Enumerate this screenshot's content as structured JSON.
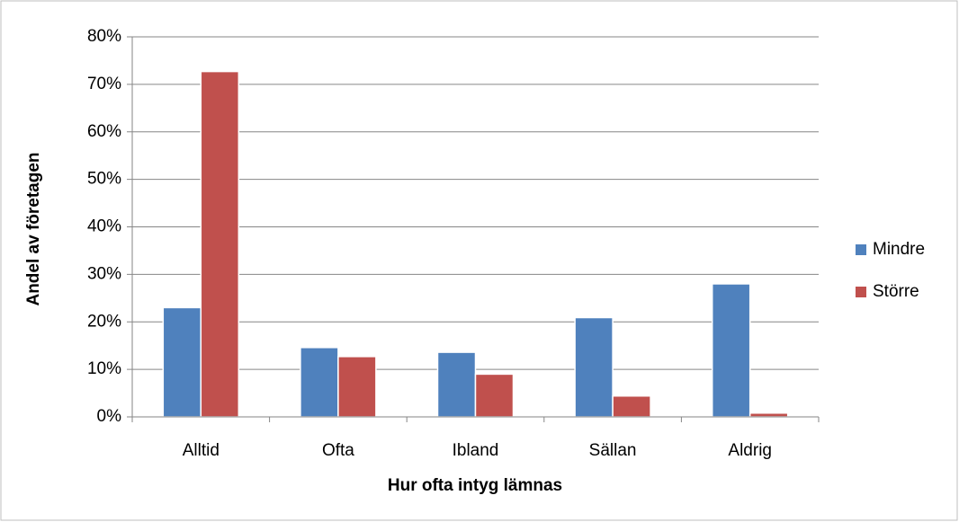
{
  "chart_data": {
    "type": "bar",
    "categories": [
      "Alltid",
      "Ofta",
      "Ibland",
      "Sällan",
      "Aldrig"
    ],
    "series": [
      {
        "name": "Mindre",
        "color": "#4f81bd",
        "values": [
          23,
          14.6,
          13.6,
          20.9,
          28
        ]
      },
      {
        "name": "Större",
        "color": "#c0504d",
        "values": [
          72.7,
          12.7,
          9,
          4.4,
          0.8
        ]
      }
    ],
    "ylim": [
      0,
      80
    ],
    "yticks": [
      {
        "value": 0,
        "label": "0%"
      },
      {
        "value": 10,
        "label": "10%"
      },
      {
        "value": 20,
        "label": "20%"
      },
      {
        "value": 30,
        "label": "30%"
      },
      {
        "value": 40,
        "label": "40%"
      },
      {
        "value": 50,
        "label": "50%"
      },
      {
        "value": 60,
        "label": "60%"
      },
      {
        "value": 70,
        "label": "70%"
      },
      {
        "value": 80,
        "label": "80%"
      }
    ],
    "xlabel": "Hur ofta intyg lämnas",
    "ylabel": "Andel av företagen",
    "grid": true,
    "legend": "right"
  }
}
